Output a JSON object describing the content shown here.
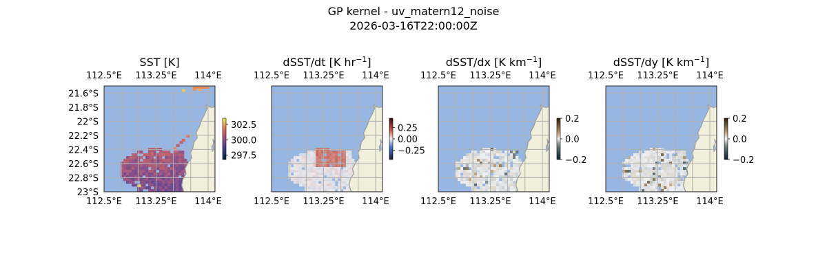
{
  "figure": {
    "title_line1": "GP kernel - uv_matern12_noise",
    "title_line2": "2026-03-16T22:00:00Z"
  },
  "colors": {
    "ocean": "#97b6e1",
    "land": "#efefdb",
    "coast": "#999999",
    "grid": "#b0b0b0"
  },
  "chart_data": [
    {
      "type": "heatmap",
      "title": "SST [K]",
      "title_sup": "",
      "title_end": "",
      "xlim": [
        112.5,
        114.1
      ],
      "ylim": [
        -23.0,
        -21.5
      ],
      "xticks": [
        112.5,
        113.25,
        114.0
      ],
      "xtick_labels": [
        "112.5°E",
        "113.25°E",
        "114°E"
      ],
      "yticks": [
        -21.6,
        -21.8,
        -22.0,
        -22.2,
        -22.4,
        -22.6,
        -22.8,
        -23.0
      ],
      "ytick_labels": [
        "21.6°S",
        "21.8°S",
        "22°S",
        "22.2°S",
        "22.4°S",
        "22.6°S",
        "22.8°S",
        "23°S"
      ],
      "colorbar": {
        "ticks": [
          302.5,
          300.0,
          297.5
        ],
        "tick_labels": [
          "302.5",
          "300.0",
          "297.5"
        ],
        "range": [
          296.8,
          303.5
        ],
        "cmap": "thermal"
      }
    },
    {
      "type": "heatmap",
      "title": "dSST/dt [K hr",
      "title_sup": "−1",
      "title_end": "]",
      "xlim": [
        112.5,
        114.1
      ],
      "ylim": [
        -23.0,
        -21.5
      ],
      "xticks": [
        112.5,
        113.25,
        114.0
      ],
      "xtick_labels": [
        "112.5°E",
        "113.25°E",
        "114°E"
      ],
      "yticks": [],
      "ytick_labels": [],
      "colorbar": {
        "ticks": [
          0.25,
          0.0,
          -0.25
        ],
        "tick_labels": [
          "0.25",
          "0.00",
          "−0.25"
        ],
        "range": [
          -0.45,
          0.45
        ],
        "cmap": "balance"
      }
    },
    {
      "type": "heatmap",
      "title": "dSST/dx [K km",
      "title_sup": "−1",
      "title_end": "]",
      "xlim": [
        112.5,
        114.1
      ],
      "ylim": [
        -23.0,
        -21.5
      ],
      "xticks": [
        112.5,
        113.25,
        114.0
      ],
      "xtick_labels": [
        "112.5°E",
        "113.25°E",
        "114°E"
      ],
      "yticks": [],
      "ytick_labels": [],
      "colorbar": {
        "ticks": [
          0.2,
          0.0,
          -0.2
        ],
        "tick_labels": [
          "0.2",
          "0.0",
          "−0.2"
        ],
        "range": [
          -0.2,
          0.2
        ],
        "cmap": "diff"
      }
    },
    {
      "type": "heatmap",
      "title": "dSST/dy [K km",
      "title_sup": "−1",
      "title_end": "]",
      "xlim": [
        112.5,
        114.1
      ],
      "ylim": [
        -23.0,
        -21.5
      ],
      "xticks": [
        112.5,
        113.25,
        114.0
      ],
      "xtick_labels": [
        "112.5°E",
        "113.25°E",
        "114°E"
      ],
      "yticks": [],
      "ytick_labels": [],
      "colorbar": {
        "ticks": [
          0.2,
          0.0,
          -0.2
        ],
        "tick_labels": [
          "0.2",
          "0.0",
          "−0.2"
        ],
        "range": [
          -0.2,
          0.2
        ],
        "cmap": "diff"
      }
    }
  ]
}
